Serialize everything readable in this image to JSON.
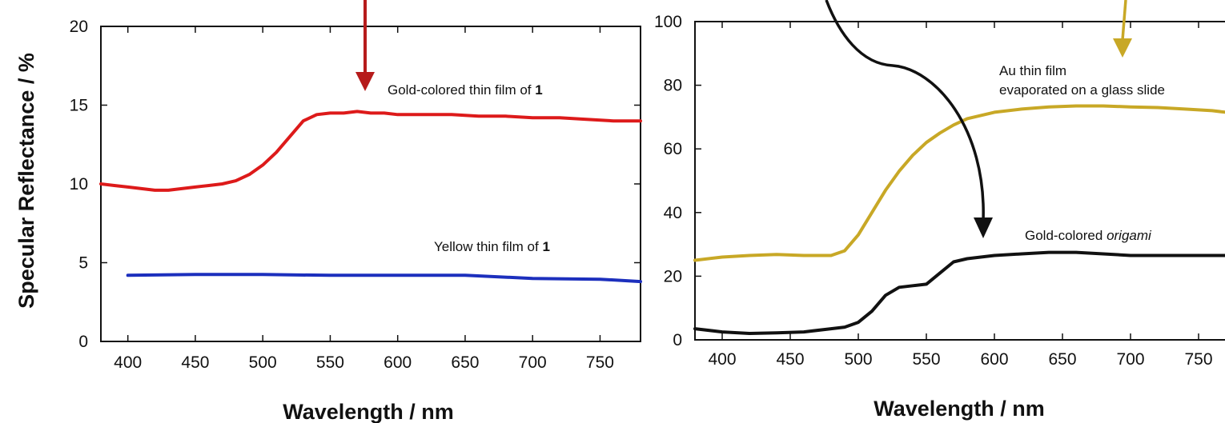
{
  "chart_data": [
    {
      "type": "line",
      "title": "",
      "xlabel": "Wavelength / nm",
      "ylabel": "Specular Reflectance / %",
      "xlim": [
        380,
        780
      ],
      "ylim": [
        0,
        20
      ],
      "x_ticks": [
        400,
        450,
        500,
        550,
        600,
        650,
        700,
        750
      ],
      "y_ticks": [
        0,
        5,
        10,
        15,
        20
      ],
      "grid": false,
      "series": [
        {
          "label_parts": [
            "Gold-colored thin film of ",
            "1"
          ],
          "color": "#dd1a1a",
          "x": [
            380,
            390,
            400,
            410,
            420,
            430,
            440,
            450,
            460,
            470,
            480,
            490,
            500,
            510,
            520,
            530,
            540,
            550,
            560,
            570,
            580,
            590,
            600,
            620,
            640,
            660,
            680,
            700,
            720,
            740,
            760,
            780
          ],
          "y": [
            10.0,
            9.9,
            9.8,
            9.7,
            9.6,
            9.6,
            9.7,
            9.8,
            9.9,
            10.0,
            10.2,
            10.6,
            11.2,
            12.0,
            13.0,
            14.0,
            14.4,
            14.5,
            14.5,
            14.6,
            14.5,
            14.5,
            14.4,
            14.4,
            14.4,
            14.3,
            14.3,
            14.2,
            14.2,
            14.1,
            14.0,
            14.0
          ]
        },
        {
          "label_parts": [
            "Yellow thin film of ",
            "1"
          ],
          "color": "#1c2fbd",
          "x": [
            400,
            450,
            500,
            550,
            600,
            650,
            700,
            750,
            780
          ],
          "y": [
            4.2,
            4.25,
            4.25,
            4.2,
            4.2,
            4.2,
            4.0,
            3.95,
            3.8
          ]
        }
      ]
    },
    {
      "type": "line",
      "title": "",
      "xlabel": "Wavelength / nm",
      "ylabel": "",
      "xlim": [
        380,
        780
      ],
      "ylim": [
        0,
        100
      ],
      "x_ticks": [
        400,
        450,
        500,
        550,
        600,
        650,
        700,
        750
      ],
      "y_ticks": [
        0,
        20,
        40,
        60,
        80,
        100
      ],
      "grid": false,
      "series": [
        {
          "label_lines": [
            "Au thin film",
            "evaporated on a glass slide"
          ],
          "color": "#c8a826",
          "x": [
            380,
            400,
            420,
            440,
            460,
            480,
            490,
            500,
            510,
            520,
            530,
            540,
            550,
            560,
            570,
            580,
            600,
            620,
            640,
            660,
            680,
            700,
            720,
            740,
            760,
            780
          ],
          "y": [
            25.0,
            26.0,
            26.5,
            26.8,
            26.5,
            26.5,
            28.0,
            33.0,
            40.0,
            47.0,
            53.0,
            58.0,
            62.0,
            65.0,
            67.5,
            69.5,
            71.5,
            72.5,
            73.2,
            73.5,
            73.5,
            73.2,
            73.0,
            72.5,
            72.0,
            71.0
          ]
        },
        {
          "label_parts": [
            "Gold-colored ",
            "origami"
          ],
          "color": "#111111",
          "x": [
            380,
            400,
            420,
            440,
            460,
            480,
            490,
            500,
            510,
            520,
            530,
            540,
            550,
            560,
            570,
            580,
            590,
            600,
            620,
            640,
            660,
            680,
            700,
            720,
            740,
            760,
            780
          ],
          "y": [
            3.5,
            2.5,
            2.0,
            2.2,
            2.5,
            3.5,
            4.0,
            5.5,
            9.0,
            14.0,
            16.5,
            17.0,
            17.5,
            21.0,
            24.5,
            25.5,
            26.0,
            26.5,
            27.0,
            27.5,
            27.5,
            27.0,
            26.5,
            26.5,
            26.5,
            26.5,
            26.5
          ]
        }
      ]
    }
  ]
}
